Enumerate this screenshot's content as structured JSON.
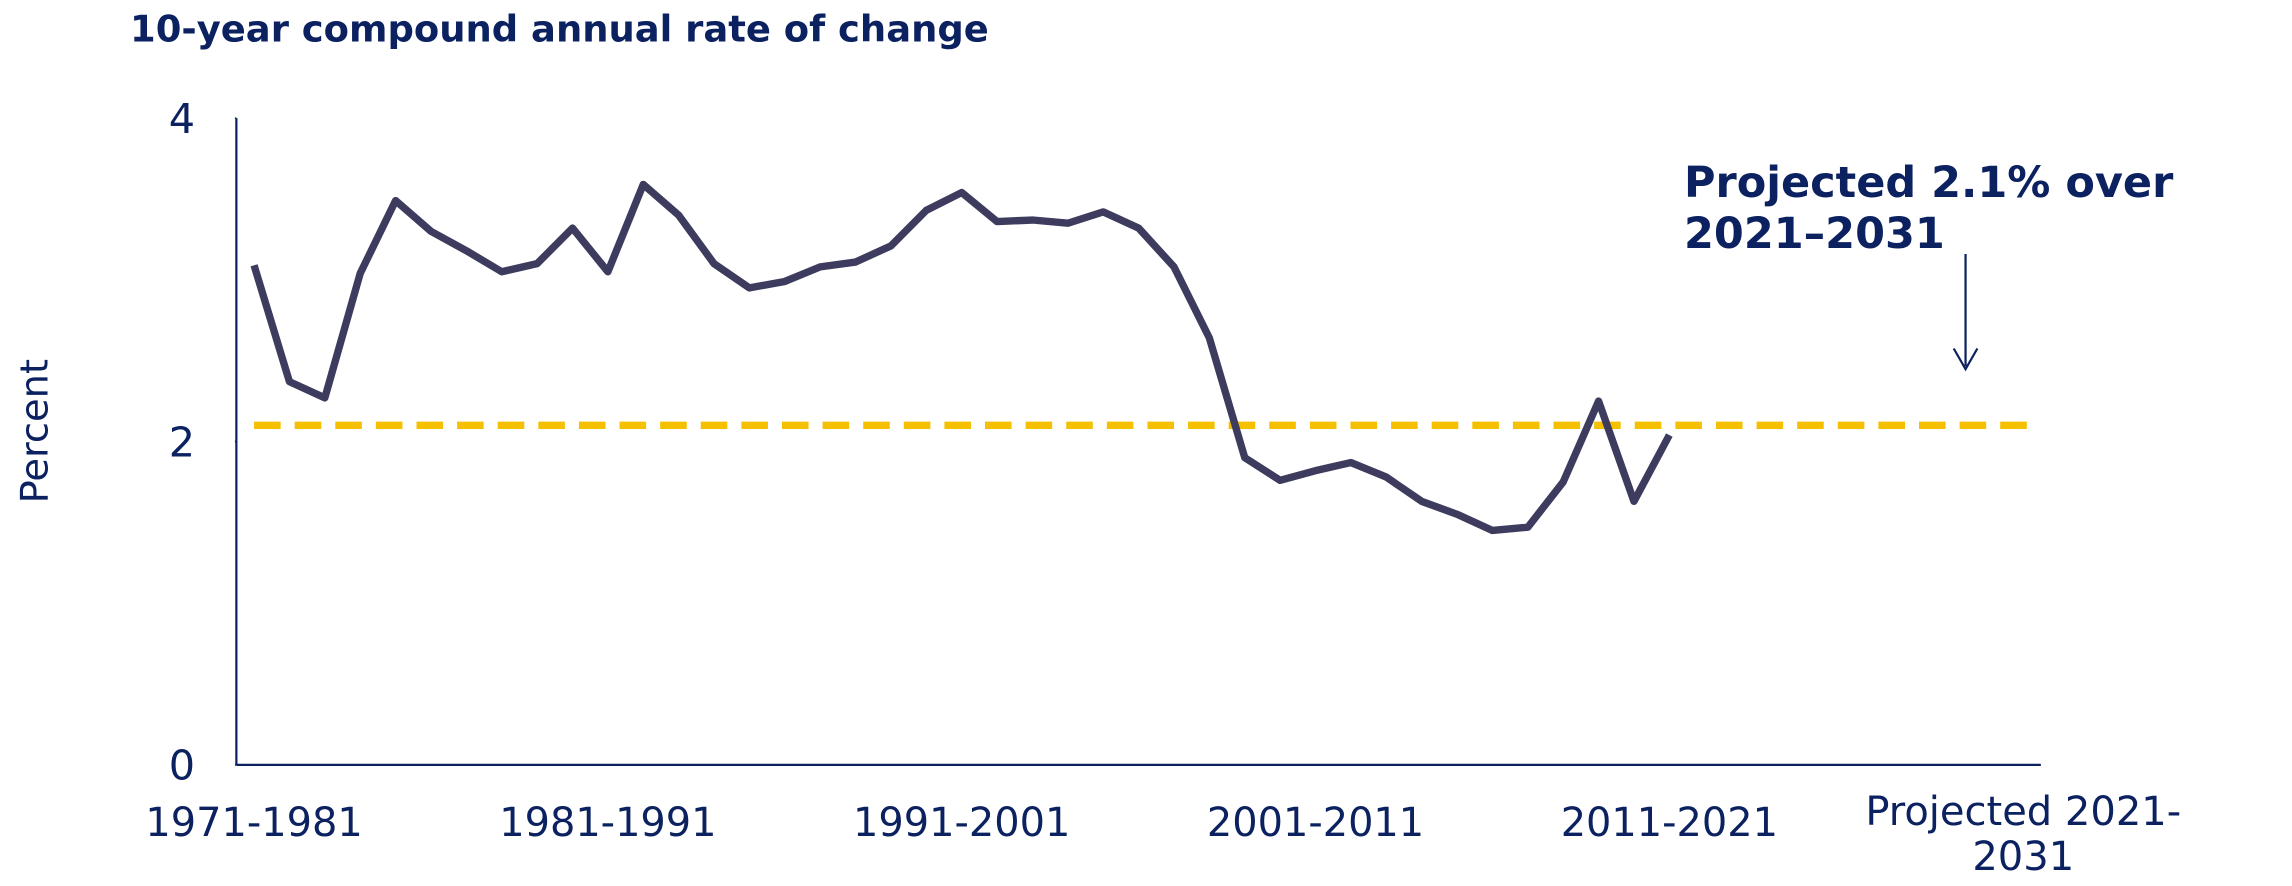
{
  "chart_data": {
    "type": "line",
    "title": "10-year compound annual rate of change",
    "y_label": "Percent",
    "categories": [
      "1971-1981",
      null,
      null,
      null,
      null,
      null,
      null,
      null,
      null,
      null,
      "1981-1991",
      null,
      null,
      null,
      null,
      null,
      null,
      null,
      null,
      null,
      "1991-2001",
      null,
      null,
      null,
      null,
      null,
      null,
      null,
      null,
      null,
      "2001-2011",
      null,
      null,
      null,
      null,
      null,
      null,
      null,
      null,
      null,
      "2011-2021",
      null,
      null,
      null,
      null,
      null,
      null,
      null,
      null,
      null,
      "Projected 2021-2031"
    ],
    "series": [
      {
        "color": "#3d3c5e",
        "values": [
          3.09,
          2.37,
          2.27,
          3.04,
          3.49,
          3.3,
          3.18,
          3.05,
          3.1,
          3.32,
          3.05,
          3.59,
          3.4,
          3.1,
          2.95,
          2.99,
          3.08,
          3.11,
          3.21,
          3.43,
          3.54,
          3.36,
          3.37,
          3.35,
          3.42,
          3.32,
          3.08,
          2.64,
          1.9,
          1.76,
          1.82,
          1.87,
          1.78,
          1.63,
          1.55,
          1.45,
          1.47,
          1.75,
          2.25,
          1.63,
          2.04,
          null,
          null,
          null,
          null,
          null,
          null,
          null,
          null,
          null,
          null
        ]
      }
    ],
    "reference_line": {
      "value": 2.1,
      "color": "#f5c000",
      "style": "dashed"
    },
    "annotation": "Projected 2.1% over 2021–2031",
    "ylim": [
      0,
      4
    ],
    "yticks": [
      0,
      2,
      4
    ],
    "grid": false
  }
}
